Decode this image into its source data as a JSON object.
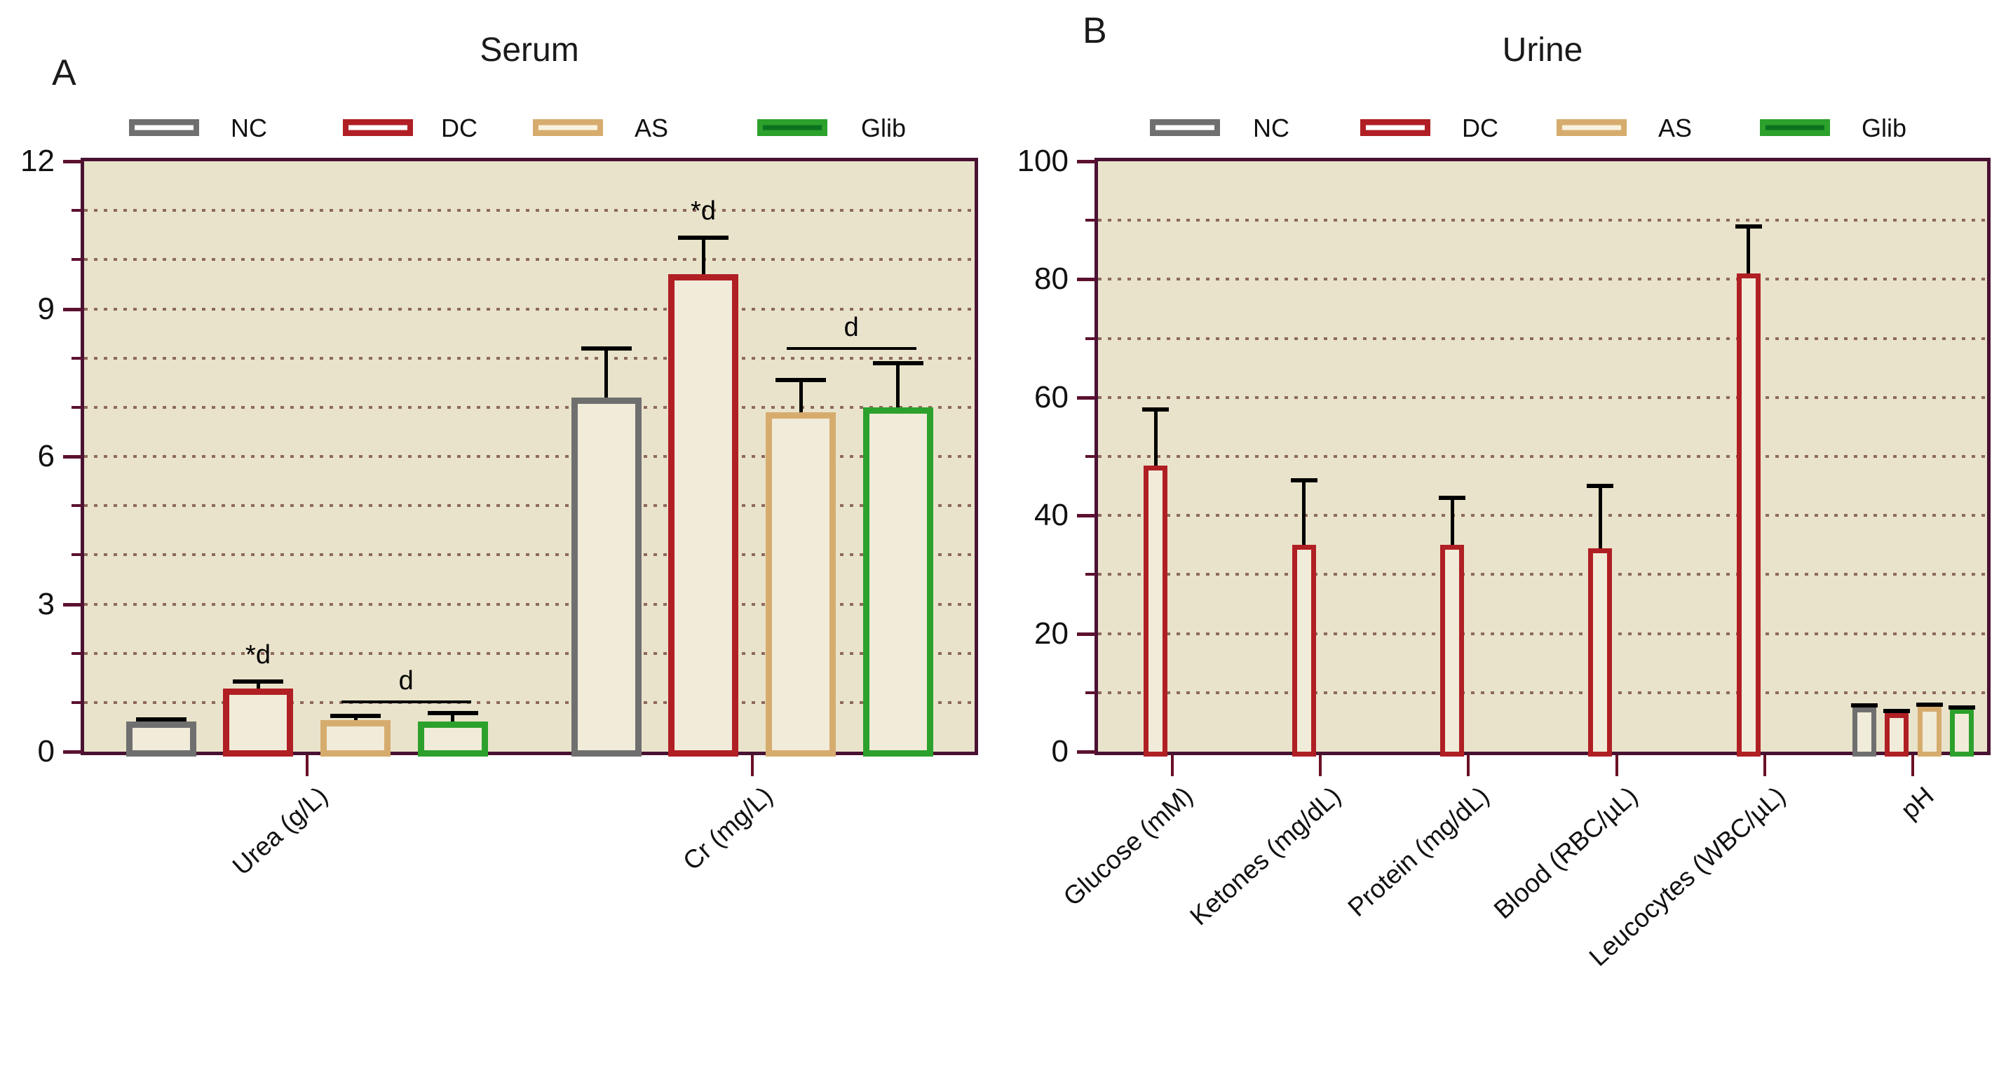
{
  "figure_labels": {
    "panel_a": "A",
    "panel_b": "B"
  },
  "colors": {
    "plot_background": "#E9E3CB",
    "bar_fill": "#F1EBD9",
    "plot_border": "#4A1232",
    "grid_dot": "#74483C",
    "axis_tick": "#5C1130",
    "x_tick": "#6B1026",
    "error_bar": "#000000",
    "nc": "#6F6F6F",
    "dc": "#B01F24",
    "as": "#D6AC6E",
    "glib": "#2CA12C"
  },
  "chart_data": [
    {
      "type": "bar",
      "panel_label": "A",
      "title": "Serum",
      "xlabel": "",
      "ylabel": "",
      "ylim": [
        0,
        12
      ],
      "yticks": [
        0,
        3,
        6,
        9,
        12
      ],
      "minor_tick_step": 1,
      "grid": "horizontal dotted every 1 unit",
      "legend_position": "top",
      "bar_style": "hollow outline bars with upper error bars",
      "categories": [
        "Urea (g/L)",
        "Cr (mg/L)"
      ],
      "series": [
        {
          "name": "NC",
          "color": "#6F6F6F",
          "stripe": "#FFFFFF",
          "values": [
            0.62,
            7.2
          ],
          "errors_upper": [
            0.66,
            8.2
          ]
        },
        {
          "name": "DC",
          "color": "#B01F24",
          "stripe": "#FFFFFF",
          "values": [
            1.28,
            9.7
          ],
          "errors_upper": [
            1.42,
            10.45
          ]
        },
        {
          "name": "AS",
          "color": "#D6AC6E",
          "stripe": "#F8F2DE",
          "values": [
            0.64,
            6.9
          ],
          "errors_upper": [
            0.73,
            7.55
          ]
        },
        {
          "name": "Glib",
          "color": "#2CA12C",
          "stripe": "#0B731F",
          "values": [
            0.62,
            7.0
          ],
          "errors_upper": [
            0.78,
            7.9
          ]
        }
      ],
      "annotations": [
        {
          "type": "star",
          "text": "*d",
          "category": 0,
          "series": "DC",
          "y": 1.62
        },
        {
          "type": "bracket",
          "text": "d",
          "category": 0,
          "from_series": "AS",
          "to_series": "Glib",
          "y": 0.99
        },
        {
          "type": "star",
          "text": "*d",
          "category": 1,
          "series": "DC",
          "y": 10.65
        },
        {
          "type": "bracket",
          "text": "d",
          "category": 1,
          "from_series": "AS",
          "to_series": "Glib",
          "y": 8.17
        }
      ]
    },
    {
      "type": "bar",
      "panel_label": "B",
      "title": "Urine",
      "xlabel": "",
      "ylabel": "",
      "ylim": [
        0,
        100
      ],
      "yticks": [
        0,
        20,
        40,
        60,
        80,
        100
      ],
      "minor_tick_step": 10,
      "grid": "horizontal dotted every 10 units",
      "legend_position": "top",
      "bar_style": "hollow outline bars with upper error bars; only DC measured for first five analytes",
      "categories": [
        "Glucose (mM)",
        "Ketones (mg/dL)",
        "Protein (mg/dL)",
        "Blood (RBC/µL)",
        "Leucocytes (WBC/µL)",
        "pH"
      ],
      "series": [
        {
          "name": "NC",
          "color": "#6F6F6F",
          "stripe": "#FFFFFF",
          "values": [
            null,
            null,
            null,
            null,
            null,
            7.5
          ],
          "errors_upper": [
            null,
            null,
            null,
            null,
            null,
            7.85
          ]
        },
        {
          "name": "DC",
          "color": "#B01F24",
          "stripe": "#FFFFFF",
          "values": [
            48.5,
            35.0,
            35.0,
            34.5,
            81.0,
            6.5
          ],
          "errors_upper": [
            58.0,
            46.0,
            43.0,
            45.0,
            89.0,
            6.85
          ]
        },
        {
          "name": "AS",
          "color": "#D6AC6E",
          "stripe": "#F8F2DE",
          "values": [
            null,
            null,
            null,
            null,
            null,
            7.6
          ],
          "errors_upper": [
            null,
            null,
            null,
            null,
            null,
            7.95
          ]
        },
        {
          "name": "Glib",
          "color": "#2CA12C",
          "stripe": "#0B731F",
          "values": [
            null,
            null,
            null,
            null,
            null,
            7.2
          ],
          "errors_upper": [
            null,
            null,
            null,
            null,
            null,
            7.5
          ]
        }
      ],
      "annotations": []
    }
  ]
}
